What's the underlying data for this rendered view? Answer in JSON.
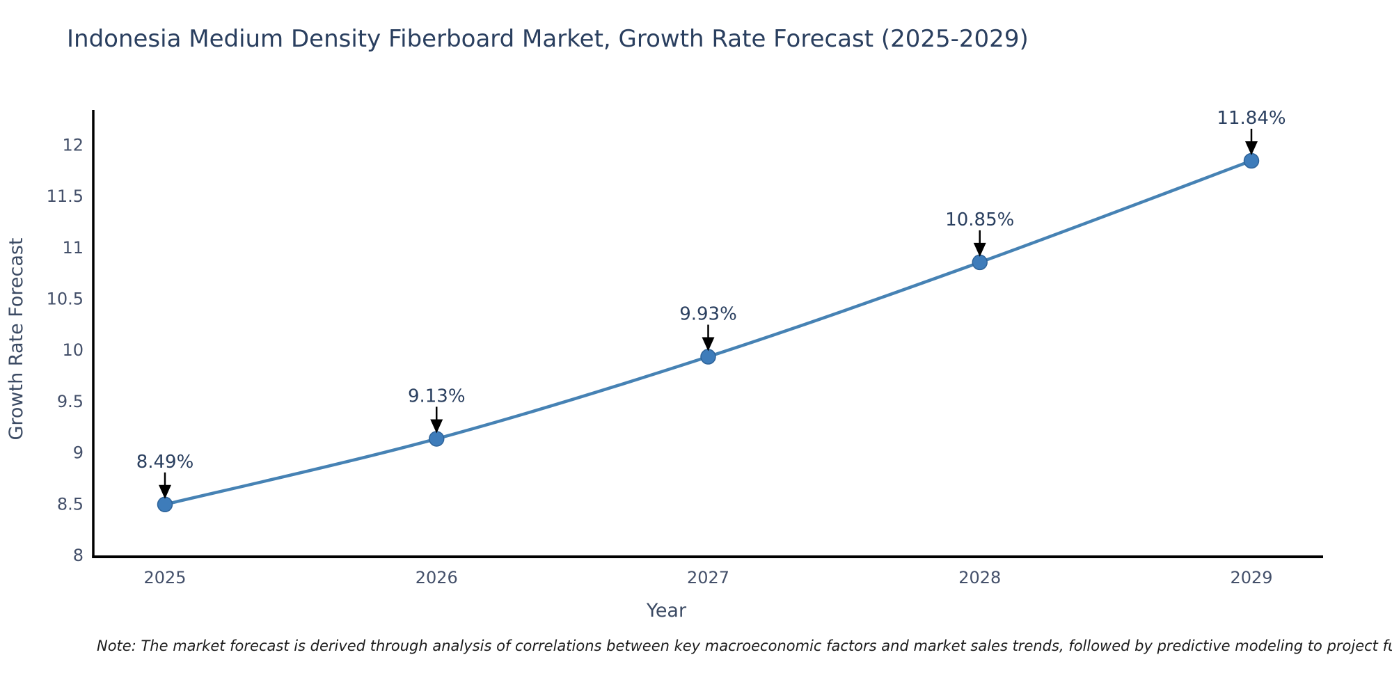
{
  "title": "Indonesia Medium Density Fiberboard Market, Growth Rate Forecast (2025-2029)",
  "note": "Note: The market forecast is derived through analysis of correlations between key macroeconomic factors and market sales trends, followed by predictive modeling to project future sal",
  "chart_data": {
    "type": "line",
    "title": "Indonesia Medium Density Fiberboard Market, Growth Rate Forecast (2025-2029)",
    "x": [
      2025,
      2026,
      2027,
      2028,
      2029
    ],
    "values": [
      8.49,
      9.13,
      9.93,
      10.85,
      11.84
    ],
    "point_labels": [
      "8.49%",
      "9.13%",
      "9.93%",
      "10.85%",
      "11.84%"
    ],
    "xlabel": "Year",
    "ylabel": "Growth Rate Forecast",
    "xtick_labels": [
      "2025",
      "2026",
      "2027",
      "2028",
      "2029"
    ],
    "ytick_values": [
      8,
      8.5,
      9,
      9.5,
      10,
      10.5,
      11,
      11.5,
      12
    ],
    "ytick_labels": [
      "8",
      "8.5",
      "9",
      "9.5",
      "10",
      "10.5",
      "11",
      "11.5",
      "12"
    ],
    "ylim": [
      8,
      12.35
    ],
    "grid": false,
    "legend": null,
    "colors": {
      "line": "#4682b4",
      "marker_fill": "#3e7cba",
      "marker_edge": "#2e6399",
      "axis": "#000000",
      "tick_text": "#44506a",
      "axis_title_text": "#3b4a63",
      "annotation_text": "#2a3f5f",
      "annotation_arrow": "#000000",
      "title_text": "#2a3f5f"
    }
  }
}
